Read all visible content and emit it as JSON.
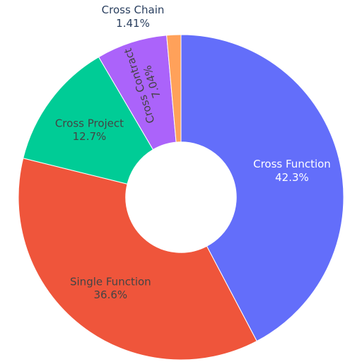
{
  "chart_data": {
    "type": "pie",
    "hole": 0.34,
    "categories": [
      "Cross Function",
      "Single Function",
      "Cross Project",
      "Cross Contract",
      "Cross Chain"
    ],
    "values": [
      42.3,
      36.6,
      12.7,
      7.04,
      1.41
    ],
    "value_labels": [
      "42.3%",
      "36.6%",
      "12.7%",
      "7.04%",
      "1.41%"
    ],
    "colors": [
      "#636efa",
      "#ef553b",
      "#00cc96",
      "#ab63fa",
      "#ffa15a"
    ],
    "label_colors": [
      "#ffffff",
      "#444444",
      "#444444",
      "#444444",
      "#444444"
    ],
    "direction": "clockwise",
    "start_angle": "top",
    "legend": "none"
  }
}
